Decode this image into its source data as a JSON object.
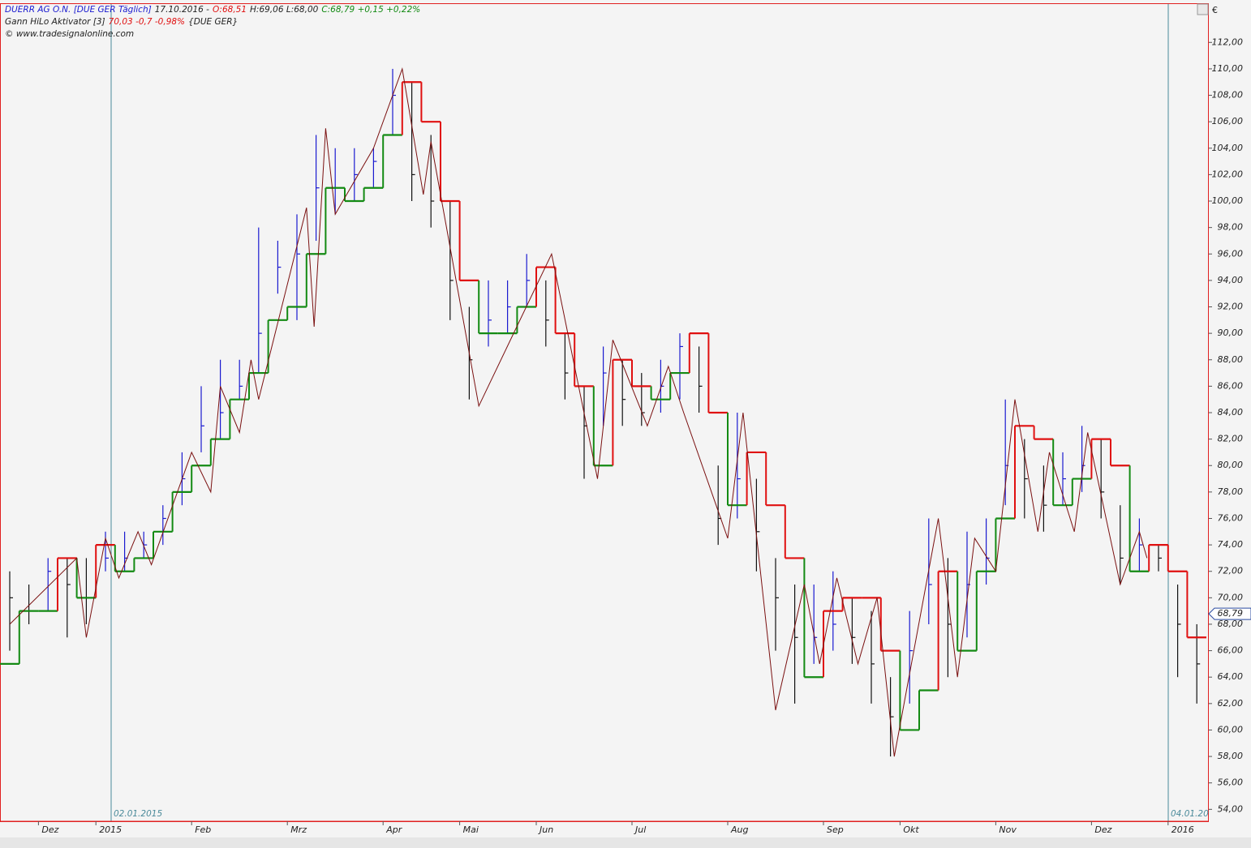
{
  "chart_data": {
    "type": "ohlc",
    "header": {
      "symbol": "DUERR AG O.N. [DUE GER  Täglich]",
      "date": "17.10.2016 -",
      "open": "O:68,51",
      "high_low": "H:69,06 L:68,00",
      "close_change": "C:68,79 +0,15 +0,22%",
      "indicator": "Gann HiLo Aktivator [3]",
      "indicator_values": "70,03 -0,7 -0,98%",
      "indicator_symbol": "{DUE GER}",
      "source": "© www.tradesignalonline.com"
    },
    "currency": "€",
    "date_markers": [
      "02.01.2015",
      "04.01.20"
    ],
    "last_price": {
      "value": 68.79,
      "label": "68,79"
    },
    "categories": [
      null,
      null,
      "Dez",
      null,
      null,
      "2015",
      null,
      null,
      null,
      null,
      "Feb",
      null,
      null,
      null,
      null,
      "Mrz",
      null,
      null,
      null,
      null,
      "Apr",
      null,
      null,
      null,
      "Mai",
      null,
      null,
      null,
      "Jun",
      null,
      null,
      null,
      null,
      "Jul",
      null,
      null,
      null,
      null,
      "Aug",
      null,
      null,
      null,
      null,
      "Sep",
      null,
      null,
      null,
      "Okt",
      null,
      null,
      null,
      null,
      "Nov",
      null,
      null,
      null,
      null,
      "Dez",
      null,
      null,
      null,
      "2016",
      null
    ],
    "high": [
      72,
      71,
      73,
      73,
      73,
      75,
      75,
      75,
      77,
      81,
      86,
      88,
      88,
      98,
      97,
      99,
      105,
      104,
      104,
      104,
      110,
      109,
      105,
      100,
      92,
      94,
      94,
      96,
      94,
      90,
      86,
      89,
      88,
      87,
      88,
      90,
      89,
      80,
      84,
      79,
      73,
      71,
      71,
      72,
      70,
      69,
      64,
      69,
      76,
      73,
      75,
      76,
      85,
      82,
      80,
      81,
      83,
      82,
      77,
      76,
      74,
      71,
      68
    ],
    "low": [
      66,
      68,
      69,
      67,
      68,
      72,
      72,
      73,
      74,
      77,
      81,
      82,
      85,
      87,
      93,
      91,
      97,
      99,
      100,
      101,
      105,
      100,
      98,
      91,
      85,
      89,
      90,
      92,
      89,
      85,
      79,
      83,
      83,
      83,
      84,
      85,
      84,
      74,
      76,
      72,
      66,
      62,
      65,
      66,
      65,
      62,
      58,
      62,
      68,
      64,
      67,
      71,
      77,
      76,
      75,
      77,
      78,
      76,
      71,
      72,
      72,
      64,
      62
    ],
    "close": [
      70,
      69,
      72,
      71,
      70,
      73,
      73,
      74,
      76,
      79,
      83,
      84,
      86,
      90,
      95,
      96,
      101,
      101,
      102,
      103,
      108,
      102,
      100,
      94,
      88,
      91,
      92,
      94,
      91,
      87,
      83,
      87,
      85,
      84,
      86,
      89,
      86,
      76,
      79,
      75,
      70,
      67,
      67,
      68,
      67,
      65,
      61,
      66,
      71,
      68,
      71,
      73,
      80,
      79,
      77,
      79,
      80,
      78,
      73,
      74,
      73,
      68,
      65
    ],
    "hilo": [
      65,
      69,
      69,
      73,
      70,
      74,
      72,
      73,
      75,
      78,
      80,
      82,
      85,
      87,
      91,
      92,
      96,
      101,
      100,
      101,
      105,
      109,
      106,
      100,
      94,
      90,
      90,
      92,
      95,
      90,
      86,
      80,
      88,
      86,
      85,
      87,
      90,
      84,
      77,
      81,
      77,
      73,
      64,
      69,
      70,
      70,
      66,
      60,
      63,
      72,
      66,
      72,
      76,
      83,
      82,
      77,
      79,
      82,
      80,
      72,
      74,
      72,
      67
    ],
    "up_color": "#1a1ad0",
    "down_color": "#111111",
    "hilo_up_color": "#138a13",
    "hilo_down_color": "#e01010",
    "zigzag": {
      "color": "#7a1010",
      "x": [
        0,
        3.5,
        4,
        5,
        5.7,
        6.7,
        7.4,
        9.5,
        10.5,
        11,
        12,
        12.6,
        13,
        15.5,
        15.9,
        16.5,
        17,
        19,
        20.5,
        21.6,
        22,
        24.5,
        28.3,
        30.7,
        31.5,
        33.3,
        34.4,
        35.2,
        37.5,
        38.3,
        40,
        41.5,
        42.3,
        43.2,
        44.3,
        45.3,
        46.2,
        48.5,
        49.5,
        50.4,
        51.5,
        52.5,
        53.7,
        54.3,
        55.6,
        56.3,
        58,
        59,
        59.4
      ],
      "values": [
        68,
        73,
        67,
        74.5,
        71.5,
        75,
        72.5,
        81,
        78,
        86,
        82.5,
        88,
        85,
        99.5,
        90.5,
        105.5,
        99,
        104,
        110,
        100.5,
        104.5,
        84.5,
        96,
        79,
        89.5,
        83,
        87.5,
        84,
        74.5,
        84,
        61.5,
        71,
        65,
        71.5,
        65,
        70,
        58,
        76,
        64,
        74.5,
        72,
        85,
        75,
        81,
        75,
        82.5,
        71,
        75,
        73
      ]
    },
    "ylim": [
      53.1,
      114.9
    ],
    "yticks": [
      {
        "value": 54,
        "label": "54,00"
      },
      {
        "value": 56,
        "label": "56,00"
      },
      {
        "value": 58,
        "label": "58,00"
      },
      {
        "value": 60,
        "label": "60,00"
      },
      {
        "value": 62,
        "label": "62,00"
      },
      {
        "value": 64,
        "label": "64,00"
      },
      {
        "value": 66,
        "label": "66,00"
      },
      {
        "value": 68,
        "label": "68,00"
      },
      {
        "value": 70,
        "label": "70,00"
      },
      {
        "value": 72,
        "label": "72,00"
      },
      {
        "value": 74,
        "label": "74,00"
      },
      {
        "value": 76,
        "label": "76,00"
      },
      {
        "value": 78,
        "label": "78,00"
      },
      {
        "value": 80,
        "label": "80,00"
      },
      {
        "value": 82,
        "label": "82,00"
      },
      {
        "value": 84,
        "label": "84,00"
      },
      {
        "value": 86,
        "label": "86,00"
      },
      {
        "value": 88,
        "label": "88,00"
      },
      {
        "value": 90,
        "label": "90,00"
      },
      {
        "value": 92,
        "label": "92,00"
      },
      {
        "value": 94,
        "label": "94,00"
      },
      {
        "value": 96,
        "label": "96,00"
      },
      {
        "value": 98,
        "label": "98,00"
      },
      {
        "value": 100,
        "label": "100,00"
      },
      {
        "value": 102,
        "label": "102,00"
      },
      {
        "value": 104,
        "label": "104,00"
      },
      {
        "value": 106,
        "label": "106,00"
      },
      {
        "value": 108,
        "label": "108,00"
      },
      {
        "value": 110,
        "label": "110,00"
      },
      {
        "value": 112,
        "label": "112,00"
      }
    ]
  }
}
